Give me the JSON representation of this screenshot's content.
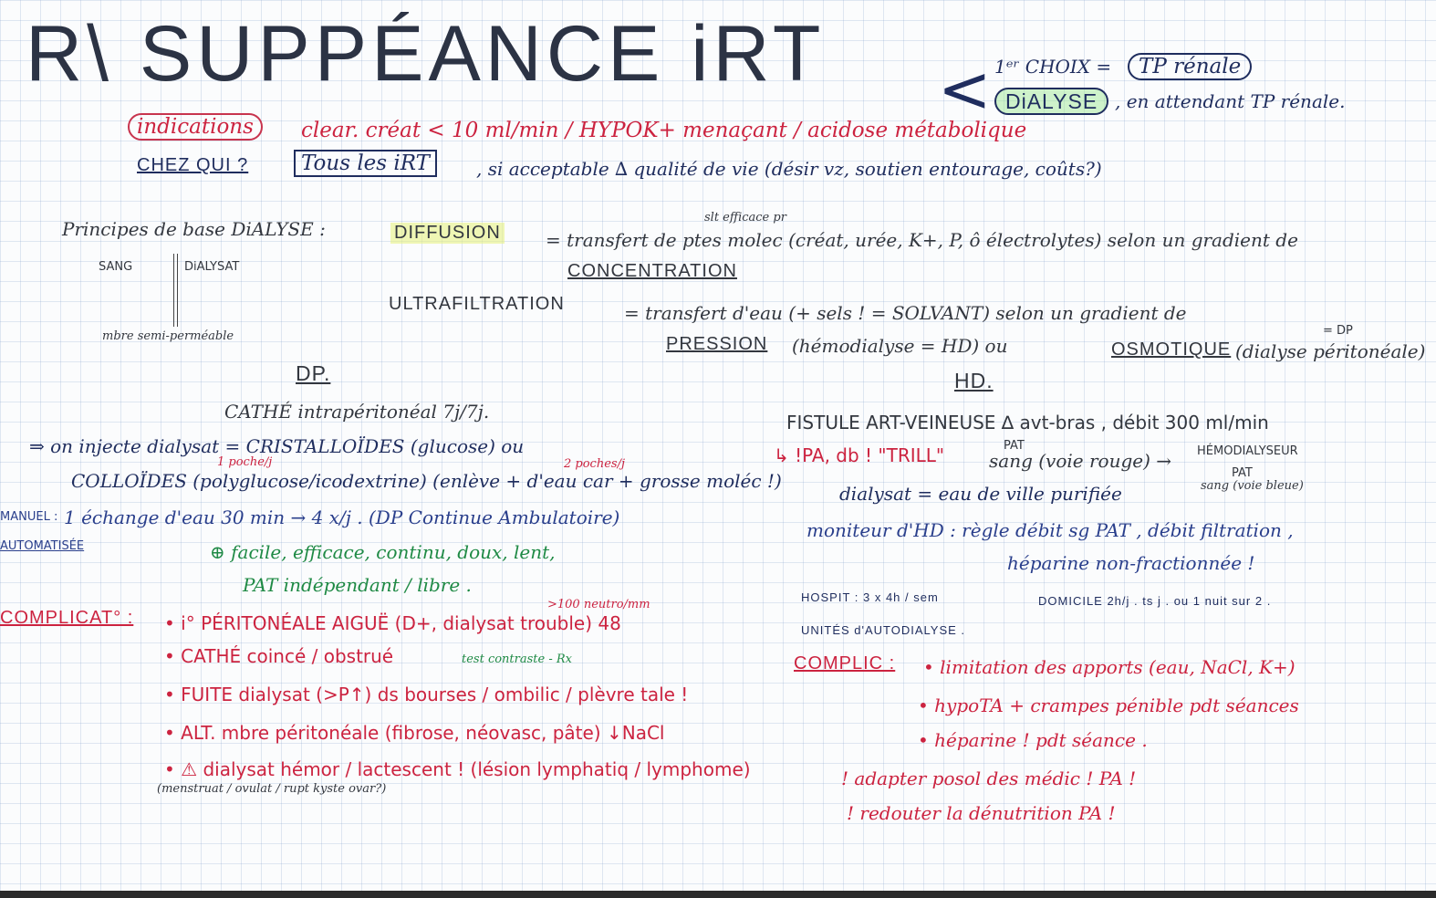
{
  "title": "R\\ SUPPÉANCE iRT",
  "choice": {
    "best": "1ᵉʳ CHOIX =",
    "tp": "TP rénale",
    "dialyse": "DiALYSE",
    "waiting": ", en attendant TP rénale."
  },
  "indications": {
    "label": "indications",
    "text": "clear. créat < 10 ml/min / HYPOK+ menaçant / acidose métabolique"
  },
  "who": {
    "label": "CHEZ QUI ?",
    "boxed": "Tous les iRT",
    "rest": ", si acceptable ∆ qualité de vie (désir vz, soutien entourage, coûts?)"
  },
  "principles": {
    "label": "Principes de base DiALYSE :",
    "sang": "SANG",
    "dialysat": "DiALYSAT",
    "membrane": "mbre semi-perméable"
  },
  "diffusion": {
    "term": "DIFFUSION",
    "note": "slt efficace pr",
    "text": "= transfert de ptes molec (créat, urée, K+, P, ô électrolytes) selon un gradient de",
    "concentration": "CONCENTRATION"
  },
  "ultrafiltration": {
    "term": "ULTRAFILTRATION",
    "text": "= transfert d'eau (+ sels ! = SOLVANT) selon un gradient de",
    "dp_note": "= DP",
    "pression": "PRESSION",
    "pression_rest": "(hémodialyse = HD) ou",
    "osmotique": "OSMOTIQUE",
    "osmo_rest": "(dialyse péritonéale)"
  },
  "dp": {
    "heading": "DP.",
    "cathe": "CATHÉ intrapéritonéal 7j/7j.",
    "inject": "⇒ on injecte dialysat = CRISTALLOÏDES (glucose) ou",
    "note1": "1 poche/j",
    "note2": "2 poches/j",
    "colloides": "COLLOÏDES (polyglucose/icodextrine) (enlève + d'eau car + grosse moléc !)",
    "manuel_label": "MANUEL :",
    "manuel": "1 échange d'eau 30 min → 4 x/j . (DP Continue Ambulatoire)",
    "auto_label": "AUTOMATISÉE",
    "advantages": "⊕ facile, efficace, continu, doux, lent,",
    "advantages2": "PAT indépendant / libre .",
    "complic_label": "COMPLICAT° :",
    "c1": "• i° PÉRITONÉALE AIGUË (D+, dialysat trouble) 48",
    "c1_note": ">100 neutro/mm",
    "c2": "• CATHÉ coincé / obstrué",
    "c2_note": "test contraste - Rx",
    "c3": "• FUITE dialysat (>P↑) ds bourses / ombilic / plèvre tale !",
    "c4": "• ALT. mbre péritonéale (fibrose, néovasc, pâte) ↓NaCl",
    "c5": "• ⚠ dialysat hémor / lactescent ! (lésion lymphatiq / lymphome)",
    "c5_note": "(menstruat / ovulat / rupt kyste ovar?)"
  },
  "hd": {
    "heading": "HD.",
    "fistule": "FISTULE ART-VEINEUSE ∆ avt-bras , débit 300 ml/min",
    "pa": "↳ !PA, db ! \"TRILL\"",
    "pat1": "PAT",
    "sang": "sang (voie rouge) →",
    "hemodialyseur": "HÉMODIALYSEUR",
    "pat2": "PAT",
    "sang_bleue": "sang (voie bleue)",
    "dialysat": "dialysat = eau de ville purifiée",
    "moniteur": "moniteur d'HD : règle débit sg PAT , débit filtration ,",
    "heparine": "héparine non-fractionnée !",
    "hospit": "HOSPIT : 3 x 4h / sem",
    "domicile": "DOMICILE 2h/j . ts j . ou 1 nuit sur 2 .",
    "unites": "UNITÉS d'AUTODIALYSE .",
    "complic_label": "COMPLIC :",
    "c1": "• limitation des apports (eau, NaCl, K+)",
    "c2": "• hypoTA + crampes pénible pdt séances",
    "c3": "• héparine ! pdt séance .",
    "a1": "! adapter posol des médic ! PA !",
    "a2": "! redouter la dénutrition PA !"
  }
}
